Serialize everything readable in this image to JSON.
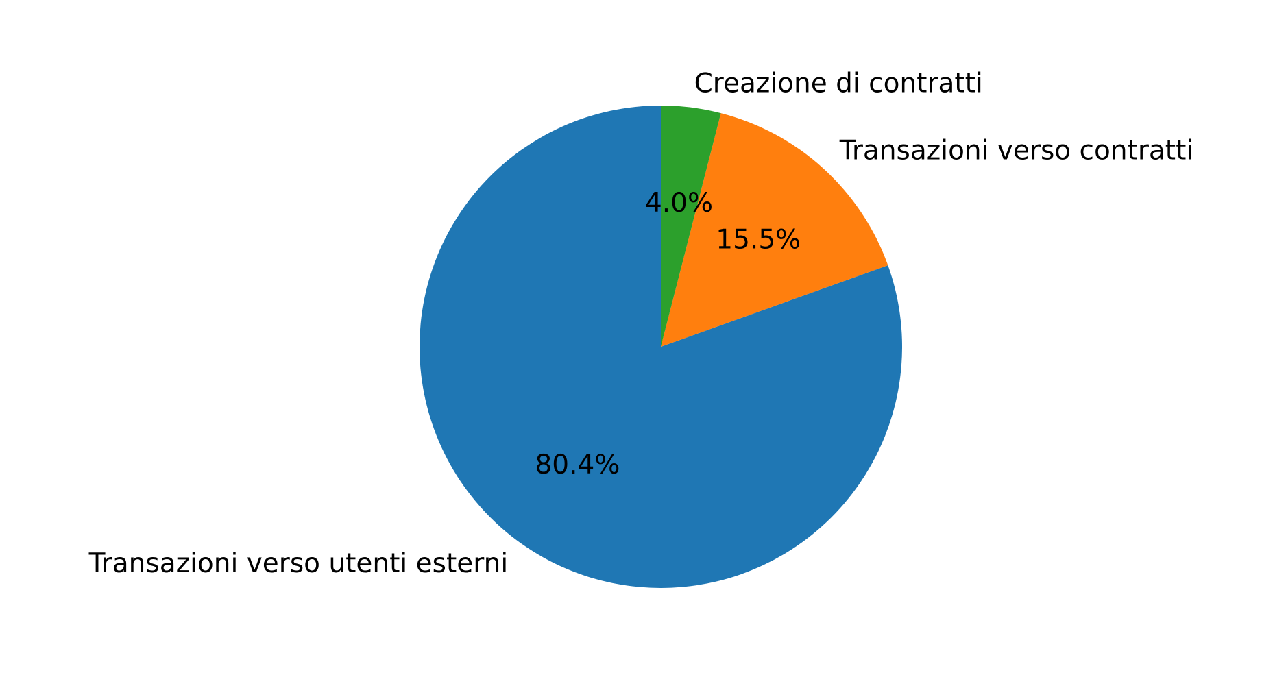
{
  "chart_data": {
    "type": "pie",
    "title": "",
    "start_angle_deg": 90,
    "direction": "counterclockwise",
    "slices": [
      {
        "label": "Transazioni verso utenti esterni",
        "value": 80.4,
        "pct_label": "80.4%",
        "color": "#1f77b4"
      },
      {
        "label": "Transazioni verso contratti",
        "value": 15.5,
        "pct_label": "15.5%",
        "color": "#ff7f0e"
      },
      {
        "label": "Creazione di contratti",
        "value": 4.0,
        "pct_label": "4.0%",
        "color": "#2ca02c"
      }
    ]
  }
}
